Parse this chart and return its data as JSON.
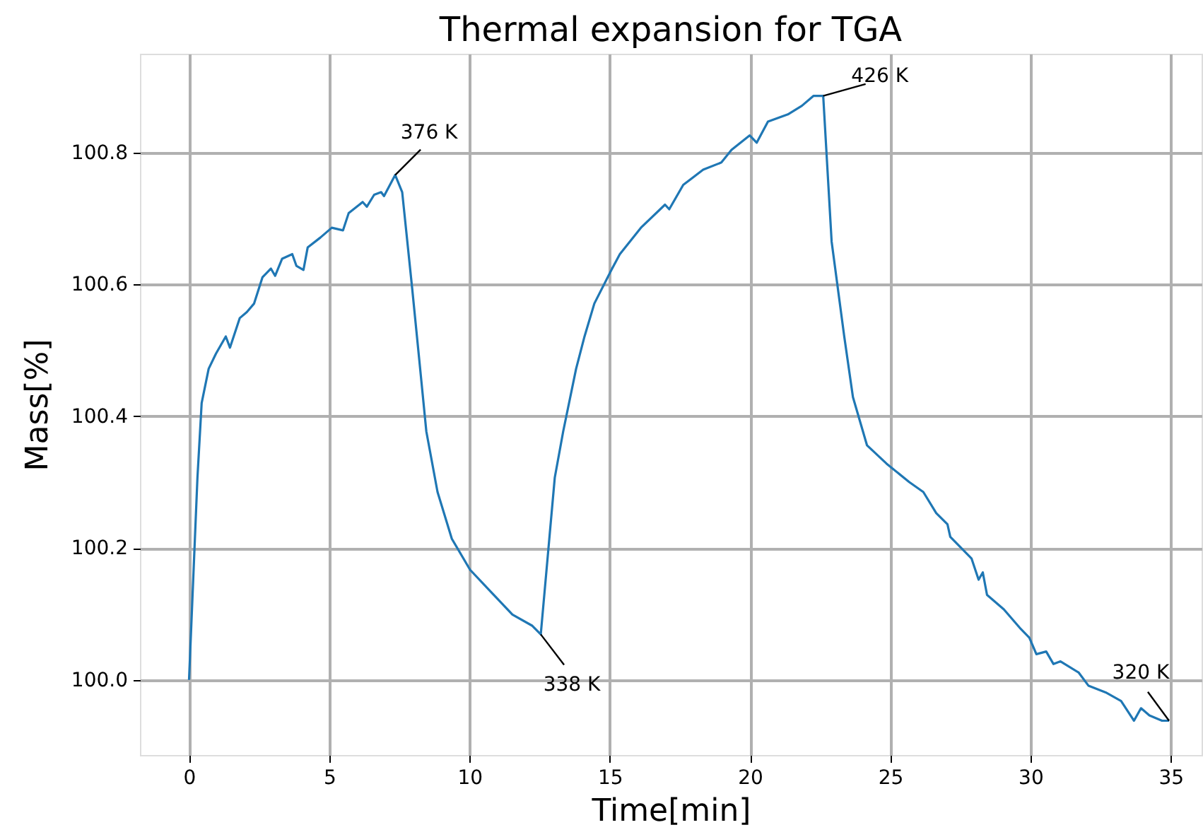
{
  "chart_data": {
    "type": "line",
    "title": "Thermal expansion for TGA",
    "xlabel": "Time[min]",
    "ylabel": "Mass[%]",
    "xlim": [
      -1.75,
      36.1
    ],
    "ylim": [
      99.886,
      100.95
    ],
    "xticks": [
      0,
      5,
      10,
      15,
      20,
      25,
      30,
      35
    ],
    "yticks": [
      {
        "value": 100.0,
        "label": "100.0"
      },
      {
        "value": 100.2,
        "label": "100.2"
      },
      {
        "value": 100.4,
        "label": "100.4"
      },
      {
        "value": 100.6,
        "label": "100.6"
      },
      {
        "value": 100.8,
        "label": "100.8"
      }
    ],
    "grid": true,
    "marker": "none",
    "line_style": "solid",
    "annotations": [
      {
        "text": "376 K",
        "x": 7.35,
        "y": 100.766
      },
      {
        "text": "338 K",
        "x": 12.54,
        "y": 100.069
      },
      {
        "text": "426 K",
        "x": 22.61,
        "y": 100.886
      },
      {
        "text": "320 K",
        "x": 34.94,
        "y": 99.938
      }
    ],
    "series": [
      {
        "color": "#1f77b4",
        "x": [
          0,
          0.3,
          0.45,
          0.7,
          0.96,
          1.31,
          1.46,
          1.81,
          2.06,
          2.32,
          2.62,
          2.92,
          3.07,
          3.32,
          3.68,
          3.83,
          4.08,
          4.23,
          4.68,
          5.09,
          5.49,
          5.69,
          6.19,
          6.34,
          6.6,
          6.85,
          6.95,
          7.35,
          7.6,
          7.96,
          8.21,
          8.46,
          8.86,
          9.37,
          10.02,
          10.73,
          11.53,
          12.24,
          12.54,
          13.04,
          13.34,
          13.8,
          14.1,
          14.45,
          15.06,
          15.36,
          16.11,
          16.97,
          17.12,
          17.62,
          18.33,
          18.98,
          19.34,
          19.99,
          20.24,
          20.64,
          21.35,
          21.85,
          22.26,
          22.61,
          22.91,
          23.36,
          23.67,
          24.17,
          24.87,
          25.68,
          26.18,
          26.64,
          27.04,
          27.14,
          27.9,
          28.15,
          28.3,
          28.45,
          29.05,
          29.66,
          29.96,
          30.21,
          30.56,
          30.82,
          31.07,
          31.72,
          32.07,
          32.68,
          33.23,
          33.69,
          33.94,
          34.24,
          34.69,
          34.94
        ],
        "values": [
          100.0,
          100.307,
          100.42,
          100.472,
          100.495,
          100.521,
          100.504,
          100.549,
          100.558,
          100.571,
          100.611,
          100.624,
          100.613,
          100.639,
          100.646,
          100.628,
          100.622,
          100.656,
          100.671,
          100.686,
          100.682,
          100.708,
          100.725,
          100.718,
          100.736,
          100.74,
          100.734,
          100.766,
          100.74,
          100.592,
          100.485,
          100.377,
          100.285,
          100.214,
          100.167,
          100.135,
          100.099,
          100.082,
          100.069,
          100.307,
          100.377,
          100.472,
          100.521,
          100.571,
          100.622,
          100.646,
          100.686,
          100.721,
          100.714,
          100.751,
          100.774,
          100.785,
          100.804,
          100.826,
          100.815,
          100.847,
          100.858,
          100.871,
          100.886,
          100.886,
          100.665,
          100.521,
          100.429,
          100.356,
          100.328,
          100.3,
          100.285,
          100.253,
          100.236,
          100.217,
          100.184,
          100.152,
          100.163,
          100.129,
          100.107,
          100.077,
          100.064,
          100.039,
          100.043,
          100.024,
          100.028,
          100.011,
          99.991,
          99.981,
          99.968,
          99.938,
          99.957,
          99.946,
          99.938,
          99.938
        ]
      }
    ]
  }
}
